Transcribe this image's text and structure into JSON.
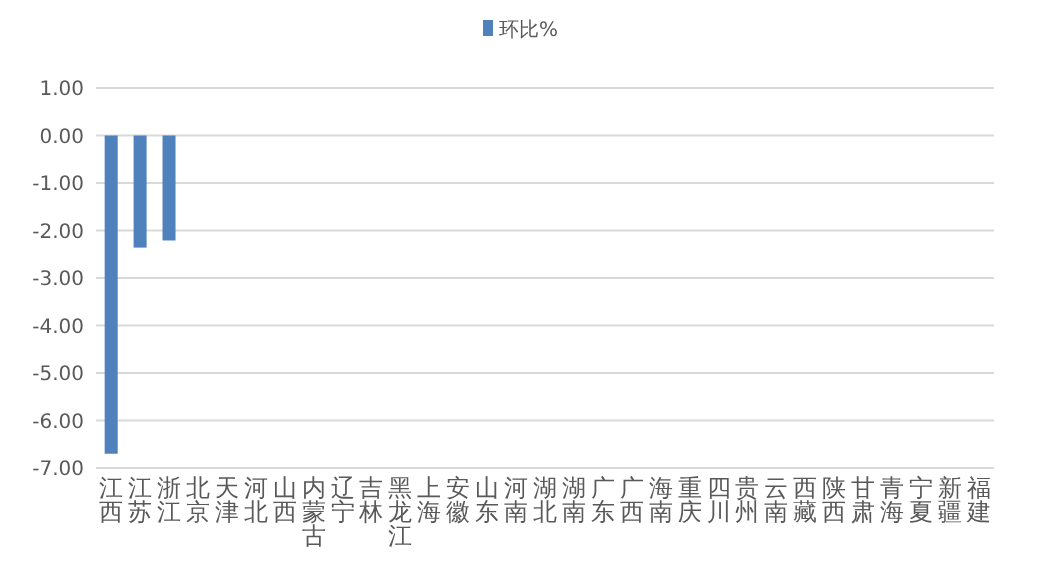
{
  "chart_data": {
    "type": "bar",
    "categories": [
      "江西",
      "江苏",
      "浙江",
      "北京",
      "天津",
      "河北",
      "山西",
      "内蒙古",
      "辽宁",
      "吉林",
      "黑龙江",
      "上海",
      "安徽",
      "山东",
      "河南",
      "湖北",
      "湖南",
      "广东",
      "广西",
      "海南",
      "重庆",
      "四川",
      "贵州",
      "云南",
      "西藏",
      "陕西",
      "甘肃",
      "青海",
      "宁夏",
      "新疆",
      "福建"
    ],
    "series": [
      {
        "name": "环比%",
        "color": "#4f81bd",
        "values": [
          -6.7,
          -2.36,
          -2.21,
          null,
          null,
          null,
          null,
          null,
          null,
          null,
          null,
          null,
          null,
          null,
          null,
          null,
          null,
          null,
          null,
          null,
          null,
          null,
          null,
          null,
          null,
          null,
          null,
          null,
          null,
          null,
          null
        ]
      }
    ],
    "ylim": [
      -7,
      1
    ],
    "yticks": [
      {
        "value": 1,
        "label": "1.00"
      },
      {
        "value": 0,
        "label": "0.00"
      },
      {
        "value": -1,
        "label": "-1.00"
      },
      {
        "value": -2,
        "label": "-2.00"
      },
      {
        "value": -3,
        "label": "-3.00"
      },
      {
        "value": -4,
        "label": "-4.00"
      },
      {
        "value": -5,
        "label": "-5.00"
      },
      {
        "value": -6,
        "label": "-6.00"
      },
      {
        "value": -7,
        "label": "-7.00"
      }
    ],
    "grid": "y",
    "legend": "top"
  }
}
